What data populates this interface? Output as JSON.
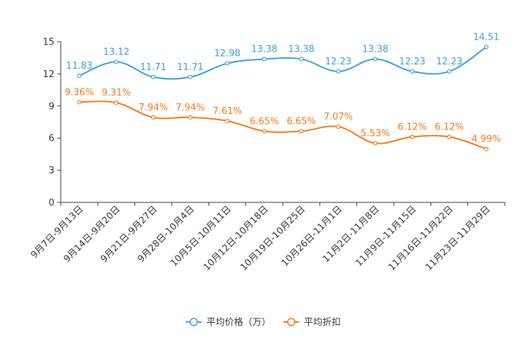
{
  "chart_data": {
    "type": "line",
    "title": "",
    "xlabel": "",
    "ylabel": "",
    "ylim": [
      0,
      15
    ],
    "yticks": [
      0,
      3,
      6,
      9,
      12,
      15
    ],
    "grid": false,
    "legend_position": "bottom-center",
    "categories": [
      "9月7日-9月13日",
      "9月14日-9月20日",
      "9月21日-9月27日",
      "9月28日-10月4日",
      "10月5日-10月11日",
      "10月12日-10月18日",
      "10月19日-10月25日",
      "10月26日-11月1日",
      "11月2日-11月8日",
      "11月9日-11月15日",
      "11月16日-11月22日",
      "11月23日-11月29日"
    ],
    "series": [
      {
        "name": "平均价格（万）",
        "color": "#3a9ed0",
        "values": [
          11.83,
          13.12,
          11.71,
          11.71,
          12.98,
          13.38,
          13.38,
          12.23,
          13.38,
          12.23,
          12.23,
          14.51
        ],
        "labels": [
          "11.83",
          "13.12",
          "11.71",
          "11.71",
          "12.98",
          "13.38",
          "13.38",
          "12.23",
          "13.38",
          "12.23",
          "12.23",
          "14.51"
        ]
      },
      {
        "name": "平均折扣",
        "color": "#f07818",
        "values": [
          9.36,
          9.31,
          7.94,
          7.94,
          7.61,
          6.65,
          6.65,
          7.07,
          5.53,
          6.12,
          6.12,
          4.99
        ],
        "labels": [
          "9.36%",
          "9.31%",
          "7.94%",
          "7.94%",
          "7.61%",
          "6.65%",
          "6.65%",
          "7.07%",
          "5.53%",
          "6.12%",
          "6.12%",
          "4.99%"
        ]
      }
    ]
  }
}
